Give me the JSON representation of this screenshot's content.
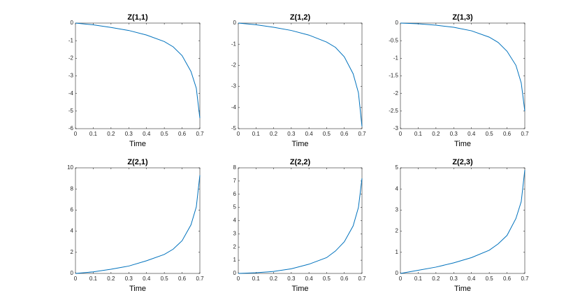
{
  "chart_data": [
    {
      "type": "line",
      "title": "Z(1,1)",
      "x_label": "Time",
      "color": "#0072bd",
      "x": [
        0,
        0.1,
        0.2,
        0.3,
        0.4,
        0.5,
        0.55,
        0.6,
        0.65,
        0.68,
        0.7
      ],
      "values": [
        0,
        -0.1,
        -0.25,
        -0.42,
        -0.68,
        -1.05,
        -1.35,
        -1.85,
        -2.75,
        -3.7,
        -5.4
      ],
      "xlim": [
        0,
        0.7
      ],
      "ylim": [
        -6,
        0
      ],
      "xticks": [
        0,
        0.1,
        0.2,
        0.3,
        0.4,
        0.5,
        0.6,
        0.7
      ],
      "yticks": [
        -6,
        -5,
        -4,
        -3,
        -2,
        -1,
        0
      ]
    },
    {
      "type": "line",
      "title": "Z(1,2)",
      "x_label": "Time",
      "color": "#0072bd",
      "x": [
        0,
        0.1,
        0.2,
        0.3,
        0.4,
        0.5,
        0.55,
        0.6,
        0.65,
        0.68,
        0.7
      ],
      "values": [
        0,
        -0.08,
        -0.2,
        -0.35,
        -0.57,
        -0.9,
        -1.15,
        -1.6,
        -2.4,
        -3.3,
        -4.9
      ],
      "xlim": [
        0,
        0.7
      ],
      "ylim": [
        -5,
        0
      ],
      "xticks": [
        0,
        0.1,
        0.2,
        0.3,
        0.4,
        0.5,
        0.6,
        0.7
      ],
      "yticks": [
        -5,
        -4,
        -3,
        -2,
        -1,
        0
      ]
    },
    {
      "type": "line",
      "title": "Z(1,3)",
      "x_label": "Time",
      "color": "#0072bd",
      "x": [
        0,
        0.1,
        0.2,
        0.3,
        0.4,
        0.5,
        0.55,
        0.6,
        0.65,
        0.68,
        0.7
      ],
      "values": [
        0,
        -0.02,
        -0.06,
        -0.12,
        -0.22,
        -0.4,
        -0.55,
        -0.8,
        -1.2,
        -1.7,
        -2.5
      ],
      "xlim": [
        0,
        0.7
      ],
      "ylim": [
        -3,
        0
      ],
      "xticks": [
        0,
        0.1,
        0.2,
        0.3,
        0.4,
        0.5,
        0.6,
        0.7
      ],
      "yticks": [
        -3,
        -2.5,
        -2,
        -1.5,
        -1,
        -0.5,
        0
      ]
    },
    {
      "type": "line",
      "title": "Z(2,1)",
      "x_label": "Time",
      "color": "#0072bd",
      "x": [
        0,
        0.1,
        0.2,
        0.3,
        0.4,
        0.5,
        0.55,
        0.6,
        0.65,
        0.68,
        0.7
      ],
      "values": [
        0,
        0.15,
        0.4,
        0.7,
        1.2,
        1.8,
        2.3,
        3.1,
        4.6,
        6.3,
        9.3
      ],
      "xlim": [
        0,
        0.7
      ],
      "ylim": [
        0,
        10
      ],
      "xticks": [
        0,
        0.1,
        0.2,
        0.3,
        0.4,
        0.5,
        0.6,
        0.7
      ],
      "yticks": [
        0,
        2,
        4,
        6,
        8,
        10
      ]
    },
    {
      "type": "line",
      "title": "Z(2,2)",
      "x_label": "Time",
      "color": "#0072bd",
      "x": [
        0,
        0.1,
        0.2,
        0.3,
        0.4,
        0.5,
        0.55,
        0.6,
        0.65,
        0.68,
        0.7
      ],
      "values": [
        0,
        0.05,
        0.15,
        0.35,
        0.7,
        1.2,
        1.7,
        2.4,
        3.6,
        5.0,
        7.2
      ],
      "xlim": [
        0,
        0.7
      ],
      "ylim": [
        0,
        8
      ],
      "xticks": [
        0,
        0.1,
        0.2,
        0.3,
        0.4,
        0.5,
        0.6,
        0.7
      ],
      "yticks": [
        0,
        1,
        2,
        3,
        4,
        5,
        6,
        7,
        8
      ]
    },
    {
      "type": "line",
      "title": "Z(2,3)",
      "x_label": "Time",
      "color": "#0072bd",
      "x": [
        0,
        0.1,
        0.2,
        0.3,
        0.4,
        0.5,
        0.55,
        0.6,
        0.65,
        0.68,
        0.7
      ],
      "values": [
        0,
        0.15,
        0.3,
        0.5,
        0.75,
        1.1,
        1.4,
        1.8,
        2.6,
        3.4,
        4.9
      ],
      "xlim": [
        0,
        0.7
      ],
      "ylim": [
        0,
        5
      ],
      "xticks": [
        0,
        0.1,
        0.2,
        0.3,
        0.4,
        0.5,
        0.6,
        0.7
      ],
      "yticks": [
        0,
        1,
        2,
        3,
        4,
        5
      ]
    }
  ]
}
